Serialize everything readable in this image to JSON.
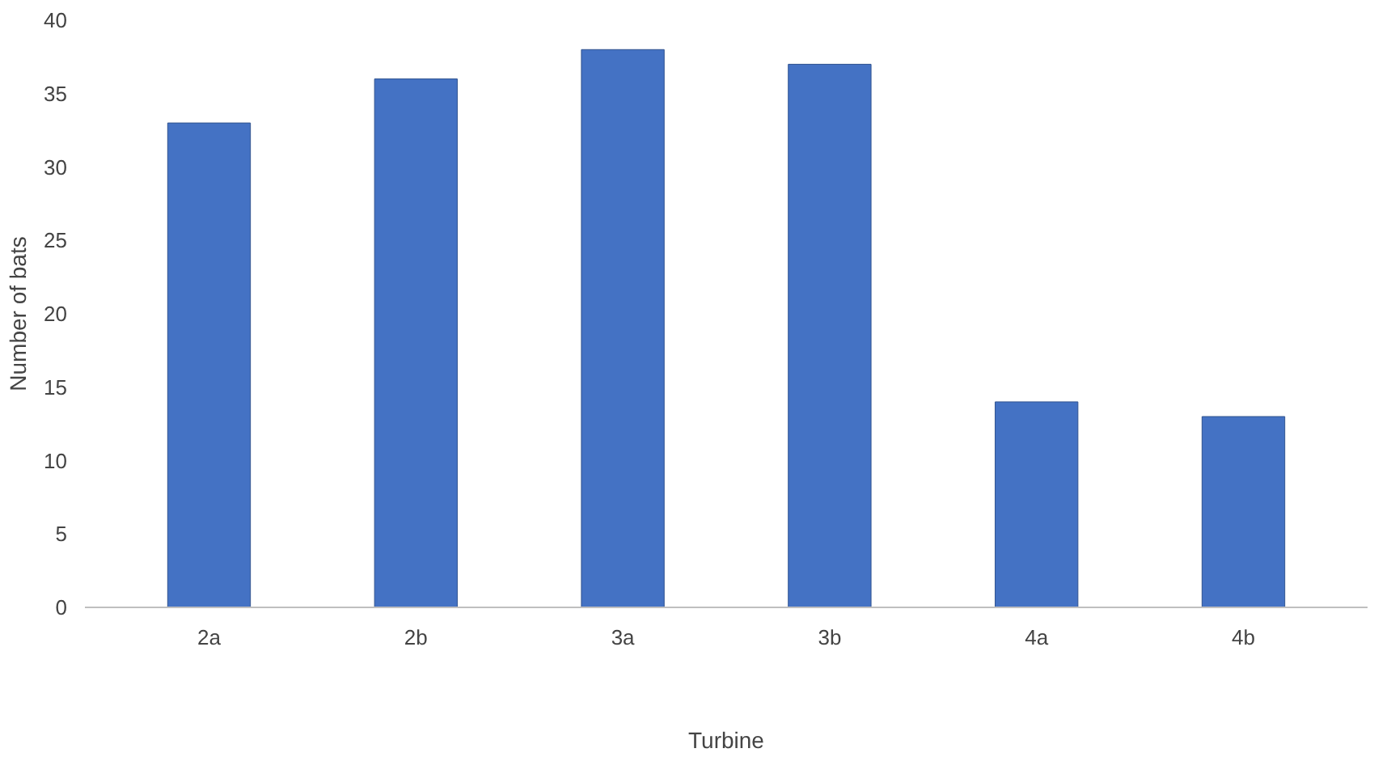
{
  "chart_data": {
    "type": "bar",
    "xlabel": "Turbine",
    "ylabel": "Number of bats",
    "categories": [
      "2a",
      "2b",
      "3a",
      "3b",
      "4a",
      "4b"
    ],
    "values": [
      33,
      36,
      38,
      37,
      14,
      13
    ],
    "color": "#4472c4",
    "ylim": [
      0,
      40
    ],
    "yticks": [
      0,
      5,
      10,
      15,
      20,
      25,
      30,
      35,
      40
    ],
    "grid": false
  }
}
